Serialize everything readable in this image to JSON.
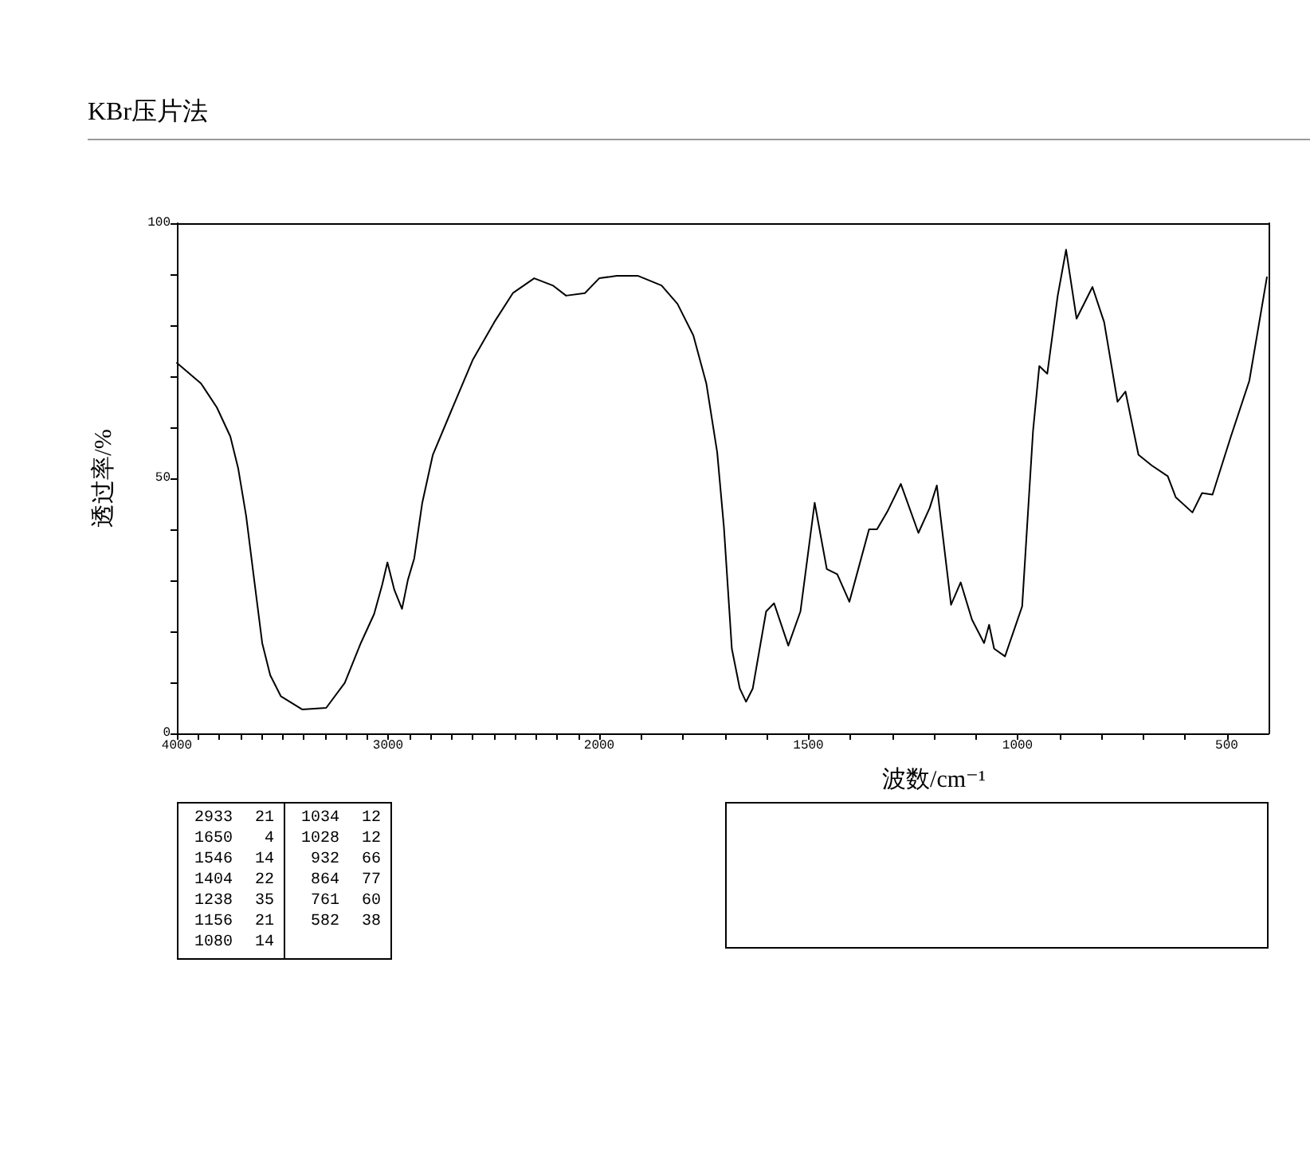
{
  "chart_data": [
    {
      "type": "line",
      "title": "KBr压片法",
      "ylabel": "透过率/%",
      "xlim": [
        4000,
        2000
      ],
      "ylim": [
        0,
        100
      ],
      "xticks": [
        4000,
        {
          "value": 3900,
          "label": null
        },
        {
          "value": 3800,
          "label": null
        },
        {
          "value": 3700,
          "label": null
        },
        {
          "value": 3600,
          "label": null
        },
        {
          "value": 3500,
          "label": null
        },
        {
          "value": 3400,
          "label": null
        },
        {
          "value": 3300,
          "label": null
        },
        {
          "value": 3200,
          "label": null
        },
        {
          "value": 3100,
          "label": null
        },
        3000,
        {
          "value": 2900,
          "label": null
        },
        {
          "value": 2800,
          "label": null
        },
        {
          "value": 2700,
          "label": null
        },
        {
          "value": 2600,
          "label": null
        },
        {
          "value": 2500,
          "label": null
        },
        {
          "value": 2400,
          "label": null
        },
        {
          "value": 2300,
          "label": null
        },
        {
          "value": 2200,
          "label": null
        },
        {
          "value": 2100,
          "label": null
        },
        2000
      ],
      "yticks": [
        0,
        {
          "value": 10,
          "label": null
        },
        {
          "value": 20,
          "label": null
        },
        {
          "value": 30,
          "label": null
        },
        {
          "value": 40,
          "label": null
        },
        50,
        {
          "value": 60,
          "label": null
        },
        {
          "value": 70,
          "label": null
        },
        {
          "value": 80,
          "label": null
        },
        {
          "value": 90,
          "label": null
        },
        100
      ],
      "grid": false,
      "marker": "none",
      "line_style": "solid",
      "annotations": [
        "2933 21",
        "1650 4",
        "1546 14",
        "1404 22",
        "1238 35",
        "1156 21",
        "1080 14",
        "1034 12",
        "1028 12",
        "932 66",
        "864 77",
        "761 60",
        "582 38"
      ],
      "series": [
        {
          "color": "#000000",
          "x": [
            4000,
            3886,
            3811,
            3747,
            3710,
            3672,
            3634,
            3596,
            3558,
            3508,
            3407,
            3293,
            3205,
            3129,
            3066,
            3028,
            3003,
            2970,
            2934,
            2906,
            2876,
            2838,
            2788,
            2699,
            2598,
            2497,
            2409,
            2308,
            2220,
            2157,
            2068,
            2000
          ],
          "values": [
            72.6,
            68.6,
            63.9,
            58.2,
            52,
            42.6,
            30.1,
            17.7,
            11.4,
            7.3,
            4.7,
            5,
            9.9,
            17.7,
            23.4,
            29.1,
            33.5,
            28.1,
            24.4,
            30.1,
            34.3,
            45.2,
            54.6,
            63.4,
            73.3,
            80.6,
            86.3,
            89.2,
            87.8,
            85.8,
            86.3,
            89.2
          ]
        }
      ]
    },
    {
      "type": "line",
      "xlabel": "波数/cm⁻¹",
      "xlim": [
        2000,
        400
      ],
      "ylim": [
        0,
        100
      ],
      "tick_labels": "x",
      "xticks": [
        {
          "value": 2000,
          "label": null
        },
        {
          "value": 1900,
          "label": null
        },
        {
          "value": 1800,
          "label": null
        },
        {
          "value": 1700,
          "label": null
        },
        {
          "value": 1600,
          "label": null
        },
        1500,
        {
          "value": 1400,
          "label": null
        },
        {
          "value": 1300,
          "label": null
        },
        {
          "value": 1200,
          "label": null
        },
        {
          "value": 1100,
          "label": null
        },
        1000,
        {
          "value": 900,
          "label": null
        },
        {
          "value": 800,
          "label": null
        },
        {
          "value": 700,
          "label": null
        },
        {
          "value": 600,
          "label": null
        },
        500
      ],
      "grid": false,
      "marker": "none",
      "line_style": "solid",
      "series": [
        {
          "color": "#000000",
          "x": [
            2000,
            1958,
            1908,
            1851,
            1813,
            1775,
            1744,
            1718,
            1702,
            1683,
            1664,
            1649,
            1633,
            1601,
            1582,
            1548,
            1519,
            1485,
            1456,
            1431,
            1402,
            1355,
            1336,
            1311,
            1279,
            1237,
            1210,
            1193,
            1159,
            1136,
            1109,
            1080,
            1068,
            1056,
            1030,
            989,
            963,
            948,
            929,
            904,
            884,
            859,
            821,
            793,
            761,
            742,
            711,
            679,
            641,
            622,
            582,
            559,
            534,
            490,
            446,
            404
          ],
          "values": [
            89.2,
            89.7,
            89.7,
            87.8,
            84.2,
            78,
            68.6,
            55.1,
            40.5,
            16.6,
            8.8,
            6.2,
            8.8,
            23.9,
            25.5,
            17.2,
            23.9,
            45.2,
            32.2,
            31.2,
            25.8,
            40,
            40,
            43.5,
            48.9,
            39.3,
            44.2,
            48.6,
            25.2,
            29.6,
            22.3,
            17.7,
            21.3,
            16.6,
            15.1,
            24.9,
            59.3,
            72,
            70.5,
            85.8,
            94.8,
            81.3,
            87.5,
            80.6,
            65,
            67,
            54.6,
            52.5,
            50.4,
            46.3,
            43.3,
            47.1,
            46.8,
            58.2,
            69.1,
            89.4
          ]
        }
      ]
    }
  ]
}
